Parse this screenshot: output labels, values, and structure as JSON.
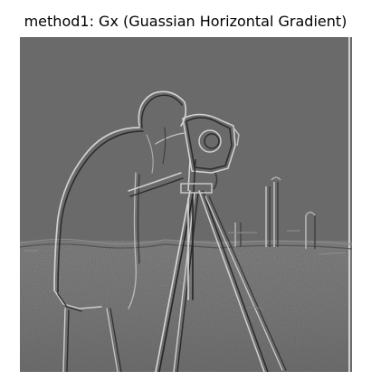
{
  "figure": {
    "title": "method1: Gx (Guassian Horizontal Gradient)"
  },
  "image": {
    "subject": "cameraman",
    "background_gray": "#6a6a6a",
    "edge_light": "#d4d4d4",
    "edge_dark": "#262626"
  }
}
